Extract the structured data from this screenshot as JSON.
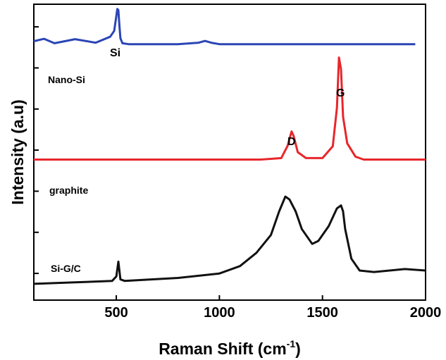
{
  "chart_data": {
    "type": "line",
    "xlabel": "Raman Shift (cm",
    "xlabel_superscript": "-1",
    "xlabel_suffix": ")",
    "ylabel": "Intensity (a.u)",
    "xlim": [
      100,
      2000
    ],
    "ylim": [
      0,
      100
    ],
    "x_ticks": [
      500,
      1000,
      1500,
      2000
    ],
    "y_tick_count": 7,
    "grid": false,
    "series": [
      {
        "name": "Nano-Si",
        "color": "#2b45b5",
        "x": [
          100,
          150,
          200,
          300,
          400,
          470,
          490,
          500,
          505,
          510,
          515,
          520,
          530,
          560,
          800,
          900,
          930,
          960,
          1000,
          1100,
          1500,
          1950
        ],
        "values": [
          87.5,
          88.3,
          86.8,
          88.2,
          87.0,
          89.0,
          91.0,
          96.0,
          98.4,
          98.0,
          93.0,
          88.5,
          86.8,
          86.5,
          86.5,
          87.0,
          87.6,
          87.0,
          86.5,
          86.5,
          86.5,
          86.5
        ]
      },
      {
        "name": "graphite",
        "color": "#e8262b",
        "x": [
          100,
          600,
          1200,
          1300,
          1330,
          1350,
          1360,
          1380,
          1420,
          1500,
          1550,
          1570,
          1580,
          1590,
          1600,
          1620,
          1660,
          1700,
          1800,
          2000
        ],
        "values": [
          47.5,
          47.5,
          47.5,
          48.0,
          52.0,
          57.0,
          55.5,
          50.0,
          48.0,
          48.0,
          52.0,
          65.0,
          82.0,
          78.0,
          62.0,
          53.0,
          48.5,
          47.5,
          47.5,
          47.5
        ]
      },
      {
        "name": "Si-G/C",
        "color": "#111111",
        "x": [
          100,
          300,
          480,
          500,
          510,
          520,
          540,
          800,
          1000,
          1100,
          1180,
          1250,
          1290,
          1320,
          1340,
          1370,
          1400,
          1450,
          1480,
          1530,
          1570,
          1590,
          1600,
          1610,
          1640,
          1680,
          1750,
          1900,
          2000
        ],
        "values": [
          5.5,
          6.0,
          6.5,
          8.0,
          13.0,
          7.0,
          6.5,
          7.5,
          9.0,
          11.5,
          16.0,
          22.0,
          30.0,
          35.0,
          34.0,
          30.0,
          24.0,
          19.0,
          20.0,
          25.0,
          31.0,
          32.0,
          30.0,
          24.0,
          14.0,
          10.0,
          9.5,
          10.5,
          10.0
        ]
      }
    ],
    "labels": {
      "nano_si": "Nano-Si",
      "graphite": "graphite",
      "sigc": "Si-G/C",
      "si_peak": "Si",
      "g_peak": "G",
      "d_peak": "D"
    }
  }
}
